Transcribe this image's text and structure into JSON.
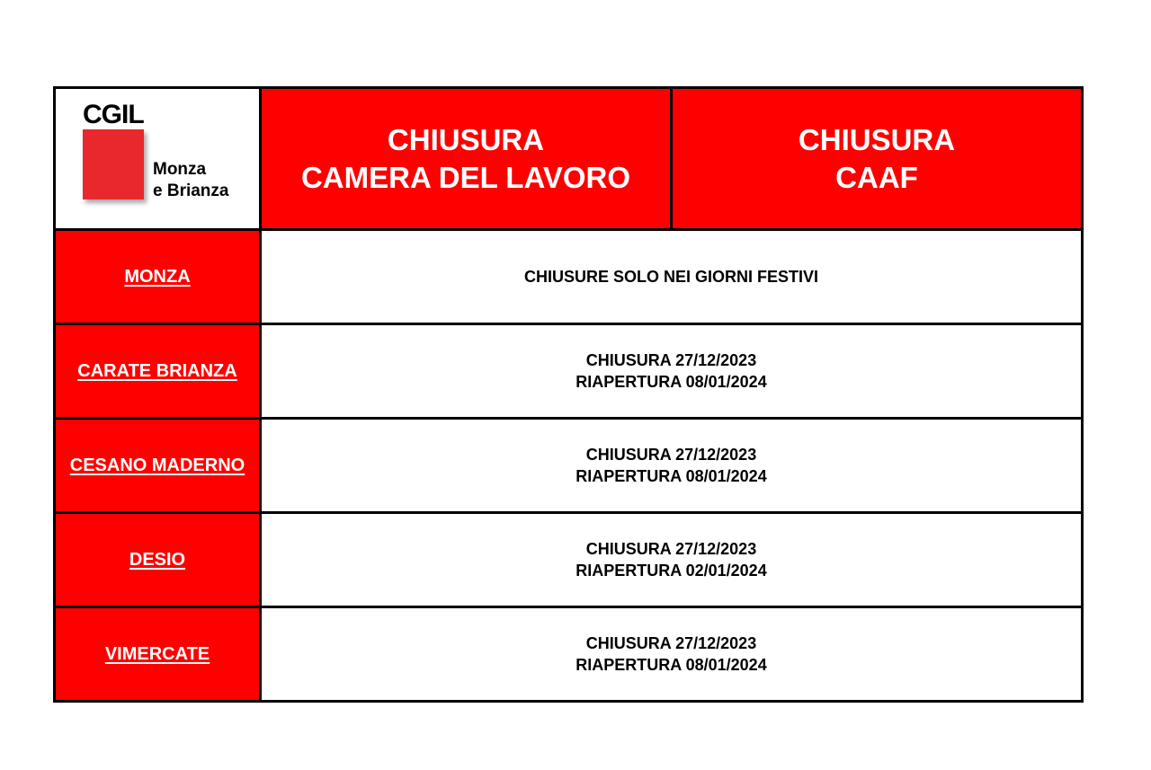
{
  "logo": {
    "brand": "CGIL",
    "line1": "Monza",
    "line2": "e Brianza",
    "colors": {
      "square": "#e8282c"
    }
  },
  "header": {
    "col1": {
      "line1": "CHIUSURA",
      "line2": "CAMERA DEL LAVORO"
    },
    "col2": {
      "line1": "CHIUSURA",
      "line2": "CAAF"
    }
  },
  "colors": {
    "accent": "#ff0000",
    "border": "#000000"
  },
  "rows": [
    {
      "city": "MONZA",
      "line1": "CHIUSURE SOLO NEI GIORNI FESTIVI",
      "line2": ""
    },
    {
      "city": "CARATE BRIANZA",
      "line1": "CHIUSURA 27/12/2023",
      "line2": "RIAPERTURA 08/01/2024"
    },
    {
      "city": "CESANO MADERNO",
      "line1": "CHIUSURA 27/12/2023",
      "line2": "RIAPERTURA 08/01/2024"
    },
    {
      "city": "DESIO",
      "line1": "CHIUSURA 27/12/2023",
      "line2": "RIAPERTURA 02/01/2024"
    },
    {
      "city": "VIMERCATE",
      "line1": "CHIUSURA 27/12/2023",
      "line2": "RIAPERTURA 08/01/2024"
    }
  ]
}
